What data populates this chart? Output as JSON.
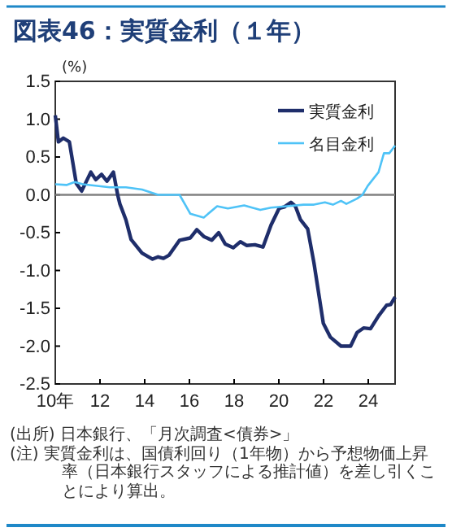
{
  "chart_data": {
    "type": "line",
    "title": "図表46：実質金利（１年）",
    "ylabel": "(%)",
    "xlim": [
      10,
      25.2
    ],
    "xticks": [
      {
        "value": 10,
        "label": "10年"
      },
      12,
      14,
      16,
      18,
      20,
      22,
      24
    ],
    "ylim": [
      -2.5,
      1.5
    ],
    "yticks": [
      {
        "value": -2.5,
        "label": "-2.5"
      },
      {
        "value": -2,
        "label": "-2.0"
      },
      {
        "value": -1.5,
        "label": "-1.5"
      },
      {
        "value": -1,
        "label": "-1.0"
      },
      {
        "value": -0.5,
        "label": "-0.5"
      },
      {
        "value": 0,
        "label": "0.0"
      },
      {
        "value": 0.5,
        "label": "0.5"
      },
      {
        "value": 1,
        "label": "1.0"
      },
      {
        "value": 1.5,
        "label": "1.5"
      }
    ],
    "grid": false,
    "legend": "top right",
    "marker": "none",
    "line_style": "solid",
    "ref_lines": [
      {
        "axis": "y",
        "value": 0,
        "color": "#808080"
      }
    ],
    "series": [
      {
        "name": "実質金利",
        "color": "#1f2e6b",
        "x": [
          10,
          10.14,
          10.36,
          10.63,
          10.94,
          11.18,
          11.59,
          11.81,
          12.07,
          12.31,
          12.6,
          12.79,
          12.89,
          13.16,
          13.39,
          13.88,
          14.35,
          14.6,
          14.84,
          15.08,
          15.56,
          16.04,
          16.33,
          16.64,
          17,
          17.31,
          17.6,
          17.96,
          18.28,
          18.57,
          18.93,
          19.29,
          19.65,
          20.01,
          20.25,
          20.54,
          20.74,
          20.97,
          21.29,
          21.57,
          21.99,
          22.3,
          22.78,
          23.21,
          23.5,
          23.79,
          24.1,
          24.46,
          24.82,
          25,
          25.2
        ],
        "values": [
          1.05,
          0.7,
          0.75,
          0.7,
          0.15,
          0.05,
          0.3,
          0.2,
          0.27,
          0.18,
          0.3,
          0,
          -0.12,
          -0.33,
          -0.59,
          -0.77,
          -0.85,
          -0.82,
          -0.84,
          -0.8,
          -0.6,
          -0.57,
          -0.46,
          -0.55,
          -0.6,
          -0.5,
          -0.65,
          -0.7,
          -0.62,
          -0.67,
          -0.66,
          -0.69,
          -0.4,
          -0.18,
          -0.16,
          -0.1,
          -0.15,
          -0.33,
          -0.45,
          -0.9,
          -1.7,
          -1.88,
          -2,
          -2,
          -1.82,
          -1.76,
          -1.77,
          -1.6,
          -1.46,
          -1.45,
          -1.35
        ]
      },
      {
        "name": "名目金利",
        "color": "#4fc3f7",
        "x": [
          10,
          10.5,
          10.87,
          11.23,
          12.43,
          13.16,
          13.88,
          14.6,
          15.56,
          16.04,
          16.64,
          17.24,
          17.72,
          18.45,
          19.17,
          19.65,
          20.37,
          21.1,
          21.57,
          22.06,
          22.42,
          22.78,
          23.02,
          23.5,
          23.74,
          23.98,
          24.46,
          24.7,
          24.94,
          25.2
        ],
        "values": [
          0.14,
          0.13,
          0.17,
          0.14,
          0.1,
          0.1,
          0.07,
          0,
          0,
          -0.25,
          -0.3,
          -0.15,
          -0.18,
          -0.14,
          -0.2,
          -0.17,
          -0.15,
          -0.13,
          -0.13,
          -0.1,
          -0.13,
          -0.08,
          -0.12,
          -0.05,
          0,
          0.12,
          0.3,
          0.55,
          0.55,
          0.65
        ]
      }
    ],
    "annotations": [
      "(出所) 日本銀行、「月次調査<債券>」",
      "(注) 実質金利は、国債利回り（1年物）から予想物価上昇率（日本銀行スタッフによる推計値）を差し引くことにより算出。"
    ]
  }
}
